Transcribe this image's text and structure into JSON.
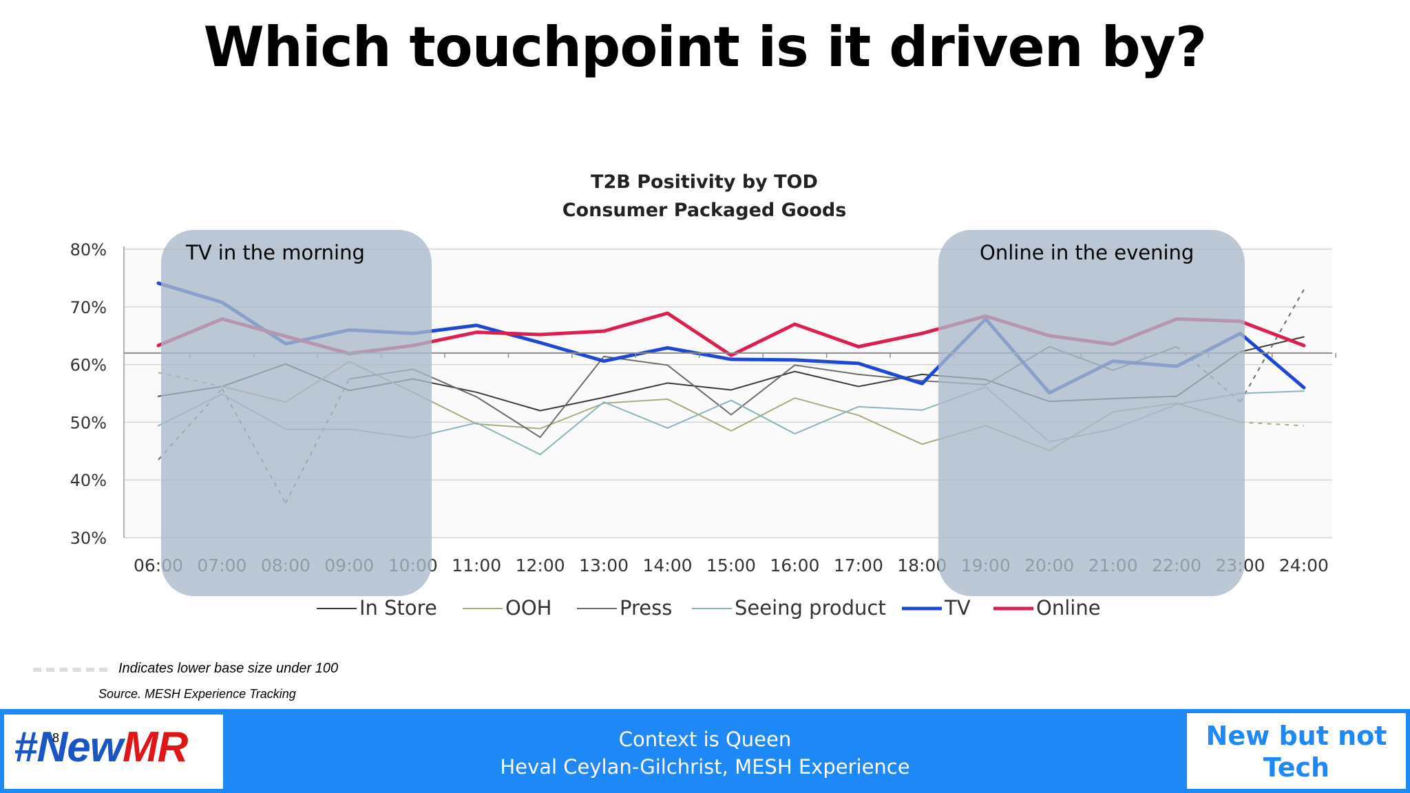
{
  "slide": {
    "title": "Which touchpoint is it driven by?",
    "base_note": "Indicates lower base size  under 100",
    "source": "Source.  MESH Experience Tracking",
    "page_number": "8"
  },
  "footer": {
    "logo_hash": "#New",
    "logo_mr": "MR",
    "center_line1": "Context is Queen",
    "center_line2": "Heval Ceylan-Gilchrist, MESH Experience",
    "tag": "New but not Tech",
    "bg_color": "#1e88f6"
  },
  "chart_data": {
    "type": "line",
    "title": "T2B Positivity by TOD",
    "subtitle": "Consumer Packaged Goods",
    "x": [
      "06:00",
      "07:00",
      "08:00",
      "09:00",
      "10:00",
      "11:00",
      "12:00",
      "13:00",
      "14:00",
      "15:00",
      "16:00",
      "17:00",
      "18:00",
      "19:00",
      "20:00",
      "21:00",
      "22:00",
      "23:00",
      "24:00"
    ],
    "ylim": [
      30,
      80
    ],
    "yticks": [
      "30%",
      "40%",
      "50%",
      "60%",
      "70%",
      "80%"
    ],
    "reference_line": 62,
    "grid": true,
    "legend_position": "bottom",
    "series": [
      {
        "name": "In Store",
        "color": "#3a3a3a",
        "width": 2,
        "values": [
          54.5,
          56.2,
          60.1,
          55.5,
          57.5,
          55.2,
          52.0,
          54.3,
          56.8,
          55.6,
          58.8,
          56.2,
          58.3,
          57.4,
          53.6,
          54.1,
          54.5,
          62.2,
          64.8
        ]
      },
      {
        "name": "OOH",
        "color": "#a6ab7c",
        "width": 2,
        "values": [
          58.6,
          56.2,
          53.5,
          60.5,
          55.2,
          49.7,
          48.9,
          53.3,
          54.0,
          48.5,
          54.2,
          51.2,
          46.2,
          49.4,
          45.1,
          51.8,
          53.3,
          50.0,
          49.4
        ]
      },
      {
        "name": "Press",
        "color": "#6b6b6b",
        "width": 2,
        "values": [
          43.5,
          55.8,
          36.0,
          57.5,
          59.2,
          54.4,
          47.4,
          61.4,
          59.9,
          51.3,
          59.9,
          58.3,
          57.2,
          56.5,
          63.1,
          59.0,
          63.1,
          53.5,
          73.0
        ]
      },
      {
        "name": "Seeing product",
        "color": "#8cb4bc",
        "width": 2,
        "values": [
          49.4,
          54.9,
          48.8,
          48.8,
          47.3,
          49.9,
          44.4,
          53.5,
          49.0,
          53.8,
          48.0,
          52.7,
          52.1,
          56.1,
          46.6,
          48.8,
          53.1,
          55.0,
          55.4
        ]
      },
      {
        "name": "TV",
        "color": "#1f48d0",
        "width": 5,
        "values": [
          74.1,
          70.8,
          63.6,
          66.0,
          65.4,
          66.8,
          63.8,
          60.6,
          62.9,
          60.9,
          60.8,
          60.2,
          56.7,
          67.9,
          55.1,
          60.6,
          59.7,
          65.4,
          56.0
        ]
      },
      {
        "name": "Online",
        "color": "#dd1f4f",
        "width": 5,
        "values": [
          63.3,
          67.9,
          64.9,
          61.9,
          63.3,
          65.6,
          65.2,
          65.8,
          68.9,
          61.6,
          67.0,
          63.1,
          65.4,
          68.4,
          65.0,
          63.5,
          67.9,
          67.5,
          63.3
        ]
      }
    ],
    "dashed_segments": [
      {
        "series": "Press",
        "from": "06:00",
        "to": "09:00"
      },
      {
        "series": "Press",
        "from": "22:00",
        "to": "24:00"
      },
      {
        "series": "OOH",
        "from": "06:00",
        "to": "07:00"
      },
      {
        "series": "OOH",
        "from": "23:00",
        "to": "24:00"
      }
    ],
    "annotations": [
      {
        "label": "TV in the morning",
        "from": "06:00",
        "to": "10:00"
      },
      {
        "label": "Online in the evening",
        "from": "18:00",
        "to": "23:00"
      }
    ],
    "annotation_color": "#a9b9c9"
  }
}
